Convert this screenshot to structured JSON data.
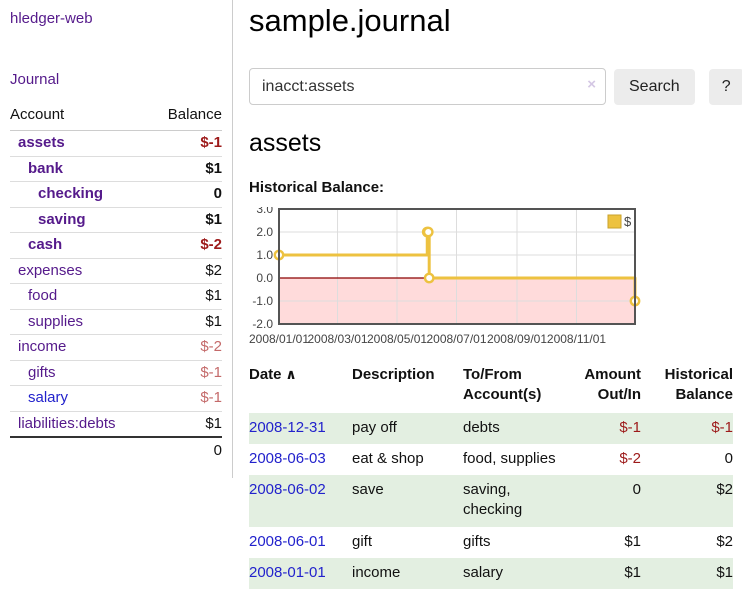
{
  "app": {
    "brand": "hledger-web",
    "nav": {
      "journal": "Journal"
    }
  },
  "sidebar": {
    "headers": {
      "account": "Account",
      "balance": "Balance"
    },
    "accounts": [
      {
        "name": "assets",
        "balance": "$-1",
        "indent": 1,
        "bold": true,
        "name_color": "purple",
        "balance_color": "negative"
      },
      {
        "name": "bank",
        "balance": "$1",
        "indent": 2,
        "bold": true,
        "name_color": "purple",
        "balance_color": "normal"
      },
      {
        "name": "checking",
        "balance": "0",
        "indent": 3,
        "bold": true,
        "name_color": "purple",
        "balance_color": "normal"
      },
      {
        "name": "saving",
        "balance": "$1",
        "indent": 3,
        "bold": true,
        "name_color": "purple",
        "balance_color": "normal"
      },
      {
        "name": "cash",
        "balance": "$-2",
        "indent": 2,
        "bold": true,
        "name_color": "purple",
        "balance_color": "negative"
      },
      {
        "name": "expenses",
        "balance": "$2",
        "indent": 1,
        "bold": false,
        "name_color": "purple",
        "balance_color": "normal"
      },
      {
        "name": "food",
        "balance": "$1",
        "indent": 2,
        "bold": false,
        "name_color": "purple",
        "balance_color": "normal"
      },
      {
        "name": "supplies",
        "balance": "$1",
        "indent": 2,
        "bold": false,
        "name_color": "purple",
        "balance_color": "normal"
      },
      {
        "name": "income",
        "balance": "$-2",
        "indent": 1,
        "bold": false,
        "name_color": "purple",
        "balance_color": "negative-muted"
      },
      {
        "name": "gifts",
        "balance": "$-1",
        "indent": 2,
        "bold": false,
        "name_color": "purple",
        "balance_color": "negative-muted"
      },
      {
        "name": "salary",
        "balance": "$-1",
        "indent": 2,
        "bold": false,
        "name_color": "blue",
        "balance_color": "negative-muted"
      },
      {
        "name": "liabilities:debts",
        "balance": "$1",
        "indent": 1,
        "bold": false,
        "name_color": "purple",
        "balance_color": "normal"
      }
    ],
    "total": "0"
  },
  "main": {
    "title": "sample.journal",
    "search": {
      "value": "inacct:assets",
      "clear_icon": "×",
      "search_button": "Search",
      "help_button": "?"
    },
    "account_title": "assets",
    "chart_heading": "Historical Balance:"
  },
  "chart_data": {
    "type": "line",
    "step": true,
    "title": "Historical Balance",
    "series": [
      {
        "name": "$",
        "points": [
          [
            "2008-01-01",
            1
          ],
          [
            "2008-06-01",
            2
          ],
          [
            "2008-06-02",
            2
          ],
          [
            "2008-06-03",
            0
          ],
          [
            "2008-12-31",
            -1
          ]
        ]
      }
    ],
    "x_range": [
      "2008-01-01",
      "2008-12-31"
    ],
    "x_ticks": [
      [
        "2008-01-01",
        "2008/01/01"
      ],
      [
        "2008-03-01",
        "2008/03/01"
      ],
      [
        "2008-05-01",
        "2008/05/01"
      ],
      [
        "2008-07-01",
        "2008/07/01"
      ],
      [
        "2008-09-01",
        "2008/09/01"
      ],
      [
        "2008-11-01",
        "2008/11/01"
      ]
    ],
    "y_ticks": [
      "3.0",
      "2.0",
      "1.0",
      "0.0",
      "-1.0",
      "-2.0"
    ],
    "ylim": [
      -2,
      3
    ],
    "grid": true,
    "legend": {
      "label": "$",
      "position": "top-right"
    },
    "colors": {
      "line": "#edc240",
      "legend_border": "#c9a22b",
      "marker_fill": "#ffffff",
      "negative_region": "#ffdbdb",
      "zero_line": "#8b0000",
      "grid": "#dddddd",
      "border": "#545454",
      "tick_text": "#444444"
    }
  },
  "register": {
    "columns": [
      {
        "label": "Date",
        "sort_arrow": "∧",
        "align": "left"
      },
      {
        "label": "Description",
        "align": "left"
      },
      {
        "label": "To/From Account(s)",
        "align": "left"
      },
      {
        "label": "Amount Out/In",
        "align": "right"
      },
      {
        "label": "Historical Balance",
        "align": "right"
      }
    ],
    "rows": [
      {
        "date": "2008-12-31",
        "description": "pay off",
        "accounts": "debts",
        "amount": "$-1",
        "amount_neg": true,
        "balance": "$-1",
        "balance_neg": true,
        "shaded": true
      },
      {
        "date": "2008-06-03",
        "description": "eat & shop",
        "accounts": "food, supplies",
        "amount": "$-2",
        "amount_neg": true,
        "balance": "0",
        "balance_neg": false,
        "shaded": false
      },
      {
        "date": "2008-06-02",
        "description": "save",
        "accounts": "saving, checking",
        "amount": "0",
        "amount_neg": false,
        "balance": "$2",
        "balance_neg": false,
        "shaded": true
      },
      {
        "date": "2008-06-01",
        "description": "gift",
        "accounts": "gifts",
        "amount": "$1",
        "amount_neg": false,
        "balance": "$2",
        "balance_neg": false,
        "shaded": false
      },
      {
        "date": "2008-01-01",
        "description": "income",
        "accounts": "salary",
        "amount": "$1",
        "amount_neg": false,
        "balance": "$1",
        "balance_neg": false,
        "shaded": true
      }
    ]
  }
}
